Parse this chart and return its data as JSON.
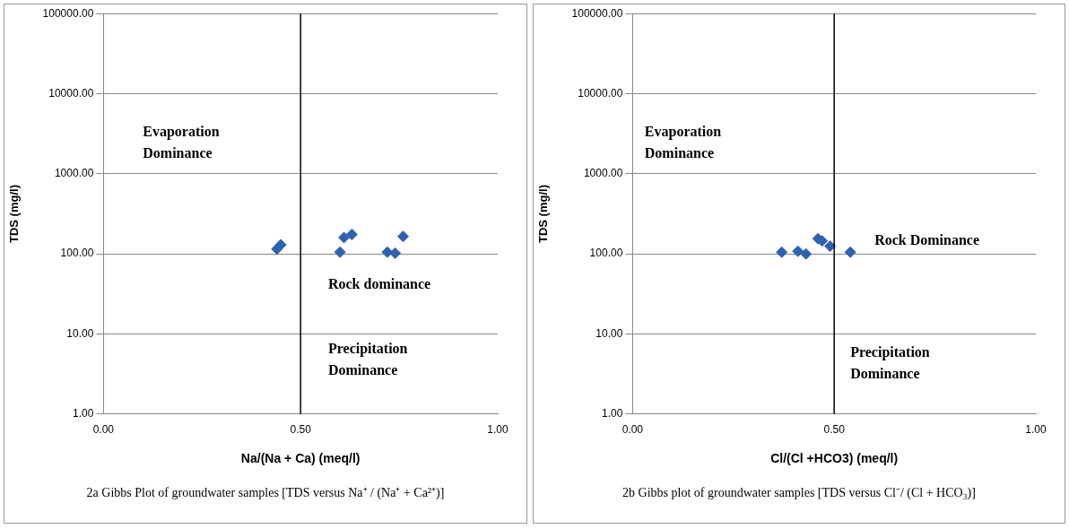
{
  "chart_data": [
    {
      "type": "scatter",
      "title": "2a Gibbs Plot of groundwater samples [TDS versus Na⁺ / (Na⁺ + Ca²⁺)]",
      "xlabel": "Na/(Na + Ca) (meq/l)",
      "ylabel": "TDS (mg/l)",
      "series": [
        {
          "color": "#2e62b0",
          "x": [
            0.44,
            0.45,
            0.6,
            0.61,
            0.63,
            0.72,
            0.74,
            0.76
          ],
          "values": [
            115,
            130,
            105,
            160,
            175,
            105,
            102,
            165
          ]
        }
      ],
      "xlim": [
        0,
        1
      ],
      "xticks": [
        {
          "value": 0,
          "label": "0.00"
        },
        {
          "value": 0.5,
          "label": "0.50"
        },
        {
          "value": 1,
          "label": "1.00"
        }
      ],
      "ylim": [
        1,
        100000
      ],
      "yticks": [
        {
          "value": 1,
          "label": "1.00"
        },
        {
          "value": 10,
          "label": "10.00"
        },
        {
          "value": 100,
          "label": "100.00"
        },
        {
          "value": 1000,
          "label": "1000.00"
        },
        {
          "value": 10000,
          "label": "10000.00"
        },
        {
          "value": 100000,
          "label": "100000.00"
        }
      ],
      "log": "y",
      "grid": "y",
      "marker": "diamond",
      "legend": false,
      "ref_lines": [
        {
          "axis": "x",
          "value": 0.5,
          "color": "#000000"
        }
      ],
      "annotations": [
        "Evaporation\nDominance",
        "Rock dominance",
        "Precipitation\nDominance"
      ]
    },
    {
      "type": "scatter",
      "title": "2b Gibbs plot of groundwater samples [TDS versus Cl⁻/ (Cl + HCO₃)]",
      "xlabel": "Cl/(Cl +HCO3) (meq/l)",
      "ylabel": "TDS (mg/l)",
      "series": [
        {
          "color": "#2e62b0",
          "x": [
            0.37,
            0.41,
            0.43,
            0.46,
            0.47,
            0.49,
            0.54
          ],
          "values": [
            105,
            108,
            100,
            155,
            145,
            125,
            105
          ]
        }
      ],
      "xlim": [
        0,
        1
      ],
      "xticks": [
        {
          "value": 0,
          "label": "0.00"
        },
        {
          "value": 0.5,
          "label": "0.50"
        },
        {
          "value": 1,
          "label": "1.00"
        }
      ],
      "ylim": [
        1,
        100000
      ],
      "yticks": [
        {
          "value": 1,
          "label": "1.00"
        },
        {
          "value": 10,
          "label": "10.00"
        },
        {
          "value": 100,
          "label": "100.00"
        },
        {
          "value": 1000,
          "label": "1000.00"
        },
        {
          "value": 10000,
          "label": "10000.00"
        },
        {
          "value": 100000,
          "label": "100000.00"
        }
      ],
      "log": "y",
      "grid": "y",
      "marker": "diamond",
      "legend": false,
      "ref_lines": [
        {
          "axis": "x",
          "value": 0.5,
          "color": "#000000"
        }
      ],
      "annotations": [
        "Evaporation\nDominance",
        "Rock Dominance",
        "Precipitation\nDominance"
      ]
    }
  ]
}
